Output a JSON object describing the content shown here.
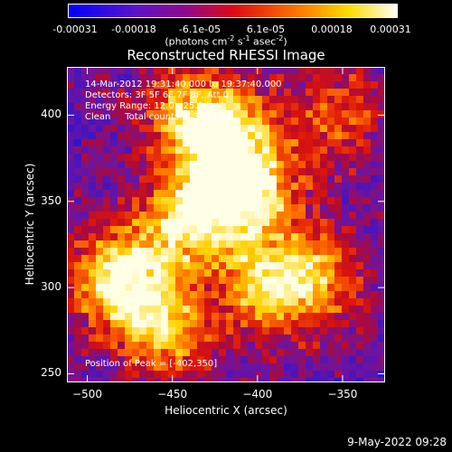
{
  "colorbar": {
    "ticks": [
      "-0.00031",
      "-0.00018",
      "-6.1e-05",
      "6.1e-05",
      "0.00018",
      "0.00031"
    ],
    "units_main": "(photons cm",
    "units_exp1": "-2",
    "units_s": " s",
    "units_exp2": "-1",
    "units_asec": " asec",
    "units_exp3": "-2",
    "units_end": ")"
  },
  "chart_data": {
    "type": "heatmap",
    "title": "Reconstructed RHESSI Image",
    "xlabel": "Heliocentric X (arcsec)",
    "ylabel": "Heliocentric Y (arcsec)",
    "xlim": [
      -512,
      -325
    ],
    "ylim": [
      245,
      428
    ],
    "x_ticks": [
      "−500",
      "−450",
      "−400",
      "−350"
    ],
    "x_tick_values": [
      -500,
      -450,
      -400,
      -350
    ],
    "y_ticks": [
      "250",
      "300",
      "350",
      "400"
    ],
    "y_tick_values": [
      250,
      300,
      350,
      400
    ],
    "colormap": "fire (blue-purple-red-yellow-white)",
    "value_range": [
      -0.00031,
      0.00031
    ],
    "peak_position": [
      -402,
      350
    ],
    "bright_sources": [
      {
        "x": -480,
        "y": 305,
        "intensity": 1.0
      },
      {
        "x": -405,
        "y": 355,
        "intensity": 0.95
      },
      {
        "x": -440,
        "y": 340,
        "intensity": 0.85
      },
      {
        "x": -420,
        "y": 390,
        "intensity": 0.75
      },
      {
        "x": -395,
        "y": 300,
        "intensity": 0.7
      },
      {
        "x": -455,
        "y": 275,
        "intensity": 0.65
      },
      {
        "x": -365,
        "y": 305,
        "intensity": 0.6
      },
      {
        "x": -355,
        "y": 400,
        "intensity": 0.5
      },
      {
        "x": -440,
        "y": 400,
        "intensity": 0.55
      }
    ]
  },
  "info": {
    "line1": "14-Mar-2012 19:31:40.000 to 19:37:40.000",
    "line2": "Detectors: 3F 5F 6F 7F 8F, Att 0",
    "line3": "Energy Range: 12.0 - 25.0 keV",
    "line4": "Clean     Total counts: 4.31E+03",
    "peak": "Position of Peak = [-402,350]"
  },
  "timestamp": "9-May-2022 09:28"
}
